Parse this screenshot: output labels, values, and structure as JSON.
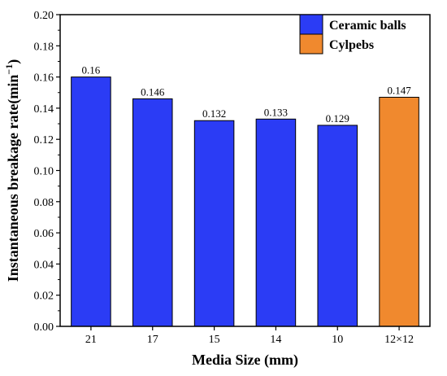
{
  "chart_data": {
    "type": "bar",
    "categories": [
      "21",
      "17",
      "15",
      "14",
      "10",
      "12×12"
    ],
    "values": [
      0.16,
      0.146,
      0.132,
      0.133,
      0.129,
      0.147
    ],
    "data_labels": [
      "0.16",
      "0.146",
      "0.132",
      "0.133",
      "0.129",
      "0.147"
    ],
    "series_index": [
      0,
      0,
      0,
      0,
      0,
      1
    ],
    "series": [
      {
        "name": "Ceramic balls",
        "color": "#2b3cf5"
      },
      {
        "name": "Cylpebs",
        "color": "#f0892e"
      }
    ],
    "xlabel": "Media Size (mm)",
    "ylabel_main": "Instantaneous breakage rate(min",
    "ylabel_sup": "−1",
    "ylabel_close": ")",
    "ylim": [
      0,
      0.2
    ],
    "yticks": [
      0.0,
      0.02,
      0.04,
      0.06,
      0.08,
      0.1,
      0.12,
      0.14,
      0.16,
      0.18,
      0.2
    ],
    "ytick_labels": [
      "0.00",
      "0.02",
      "0.04",
      "0.06",
      "0.08",
      "0.10",
      "0.12",
      "0.14",
      "0.16",
      "0.18",
      "0.20"
    ],
    "grid": false,
    "legend_position": "top-right"
  }
}
